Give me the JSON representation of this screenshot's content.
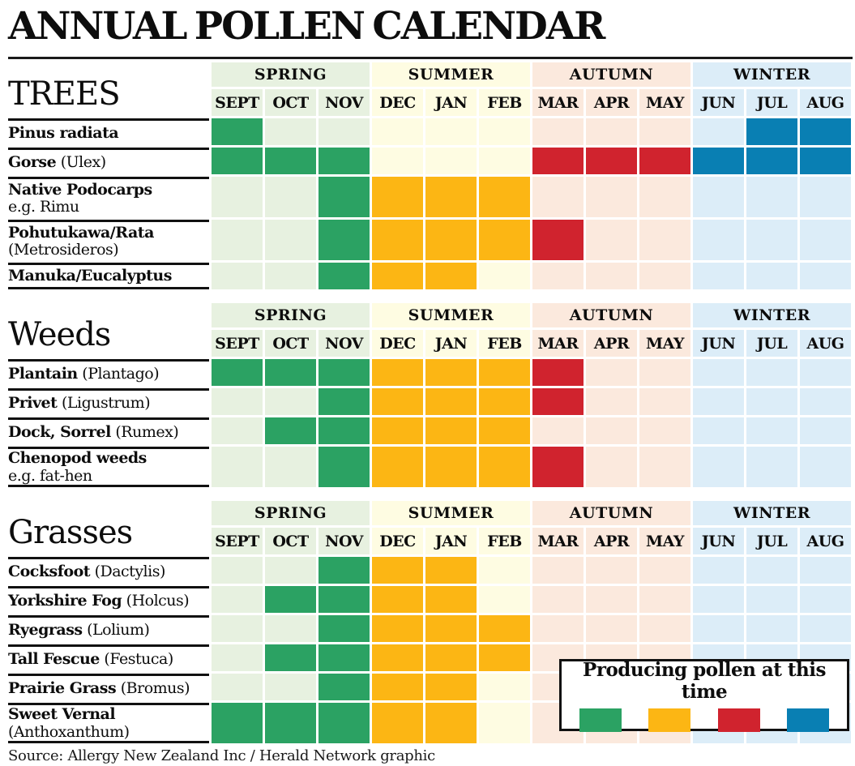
{
  "title": "ANNUAL POLLEN CALENDAR",
  "source": "Source: Allergy New Zealand Inc / Herald Network graphic",
  "seasons": [
    "SPRING",
    "SUMMER",
    "AUTUMN",
    "WINTER"
  ],
  "months": [
    "SEPT",
    "OCT",
    "NOV",
    "DEC",
    "JAN",
    "FEB",
    "MAR",
    "APR",
    "MAY",
    "JUN",
    "JUL",
    "AUG"
  ],
  "legend": {
    "label": "Producing pollen at this time",
    "colors": [
      "green",
      "yellow",
      "red",
      "blue"
    ]
  },
  "palette": {
    "green": "#2ba263",
    "yellow": "#fcb614",
    "red": "#d0232e",
    "blue": "#097fb3",
    "spring_bg": "#e7f1e0",
    "summer_bg": "#fefce2",
    "autumn_bg": "#fbe9dd",
    "winter_bg": "#dcedf8"
  },
  "chart_data": {
    "type": "heatmap",
    "title": "ANNUAL POLLEN CALENDAR",
    "x": [
      "SEPT",
      "OCT",
      "NOV",
      "DEC",
      "JAN",
      "FEB",
      "MAR",
      "APR",
      "MAY",
      "JUN",
      "JUL",
      "AUG"
    ],
    "season_of_month": [
      "SPRING",
      "SPRING",
      "SPRING",
      "SUMMER",
      "SUMMER",
      "SUMMER",
      "AUTUMN",
      "AUTUMN",
      "AUTUMN",
      "WINTER",
      "WINTER",
      "WINTER"
    ],
    "legend": "Producing pollen at this time",
    "cell_meaning": "non-empty value = producing pollen that month, colored by season swatch; empty = not producing",
    "groups": [
      {
        "id": "trees",
        "title": "TREES",
        "rows": [
          {
            "label": "Pinus radiata",
            "suffix": "",
            "line2": "",
            "cells": [
              "green",
              "",
              "",
              "",
              "",
              "",
              "",
              "",
              "",
              "",
              "blue",
              "blue"
            ]
          },
          {
            "label": "Gorse",
            "suffix": " (Ulex)",
            "line2": "",
            "cells": [
              "green",
              "green",
              "green",
              "",
              "",
              "",
              "red",
              "red",
              "red",
              "blue",
              "blue",
              "blue"
            ]
          },
          {
            "label": "Native Podocarps",
            "suffix": "",
            "line2": "e.g. Rimu",
            "cells": [
              "",
              "",
              "green",
              "yellow",
              "yellow",
              "yellow",
              "",
              "",
              "",
              "",
              "",
              ""
            ]
          },
          {
            "label": "Pohutukawa/Rata",
            "suffix": "",
            "line2": "(Metrosideros)",
            "cells": [
              "",
              "",
              "green",
              "yellow",
              "yellow",
              "yellow",
              "red",
              "",
              "",
              "",
              "",
              ""
            ]
          },
          {
            "label": "Manuka/Eucalyptus",
            "suffix": "",
            "line2": "",
            "cells": [
              "",
              "",
              "green",
              "yellow",
              "yellow",
              "",
              "",
              "",
              "",
              "",
              "",
              ""
            ]
          }
        ]
      },
      {
        "id": "weeds",
        "title": "Weeds",
        "rows": [
          {
            "label": "Plantain",
            "suffix": " (Plantago)",
            "line2": "",
            "cells": [
              "green",
              "green",
              "green",
              "yellow",
              "yellow",
              "yellow",
              "red",
              "",
              "",
              "",
              "",
              ""
            ]
          },
          {
            "label": "Privet",
            "suffix": " (Ligustrum)",
            "line2": "",
            "cells": [
              "",
              "",
              "green",
              "yellow",
              "yellow",
              "yellow",
              "red",
              "",
              "",
              "",
              "",
              ""
            ]
          },
          {
            "label": "Dock, Sorrel",
            "suffix": " (Rumex)",
            "line2": "",
            "cells": [
              "",
              "green",
              "green",
              "yellow",
              "yellow",
              "yellow",
              "",
              "",
              "",
              "",
              "",
              ""
            ]
          },
          {
            "label": "Chenopod weeds",
            "suffix": "",
            "line2": "e.g. fat-hen",
            "cells": [
              "",
              "",
              "green",
              "yellow",
              "yellow",
              "yellow",
              "red",
              "",
              "",
              "",
              "",
              ""
            ]
          }
        ]
      },
      {
        "id": "grasses",
        "title": "Grasses",
        "rows": [
          {
            "label": "Cocksfoot",
            "suffix": " (Dactylis)",
            "line2": "",
            "cells": [
              "",
              "",
              "green",
              "yellow",
              "yellow",
              "",
              "",
              "",
              "",
              "",
              "",
              ""
            ]
          },
          {
            "label": "Yorkshire Fog",
            "suffix": " (Holcus)",
            "line2": "",
            "cells": [
              "",
              "green",
              "green",
              "yellow",
              "yellow",
              "",
              "",
              "",
              "",
              "",
              "",
              ""
            ]
          },
          {
            "label": "Ryegrass",
            "suffix": " (Lolium)",
            "line2": "",
            "cells": [
              "",
              "",
              "green",
              "yellow",
              "yellow",
              "yellow",
              "",
              "",
              "",
              "",
              "",
              ""
            ]
          },
          {
            "label": "Tall Fescue",
            "suffix": " (Festuca)",
            "line2": "",
            "cells": [
              "",
              "green",
              "green",
              "yellow",
              "yellow",
              "yellow",
              "",
              "",
              "",
              "",
              "",
              ""
            ]
          },
          {
            "label": "Prairie Grass",
            "suffix": " (Bromus)",
            "line2": "",
            "cells": [
              "",
              "",
              "green",
              "yellow",
              "yellow",
              "",
              "",
              "",
              "",
              "",
              "",
              ""
            ]
          },
          {
            "label": "Sweet Vernal",
            "suffix": "",
            "line2": "(Anthoxanthum)",
            "cells": [
              "green",
              "green",
              "green",
              "yellow",
              "yellow",
              "",
              "",
              "",
              "",
              "",
              "",
              ""
            ]
          }
        ]
      }
    ]
  }
}
